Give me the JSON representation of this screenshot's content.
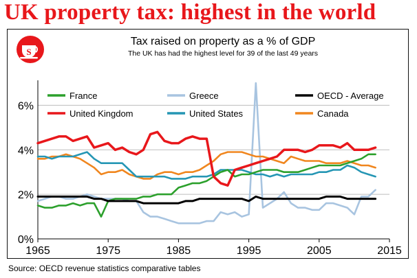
{
  "headline": "UK property tax: highest in the world",
  "source": "Source: OECD revenue statistics comparative tables",
  "chart_data": {
    "type": "line",
    "title": "Tax raised on property as a % of GDP",
    "subtitle": "The UK has had the highest level for 39 of the last 49 years",
    "x_ticks": [
      "1965",
      "1975",
      "1985",
      "1995",
      "2005",
      "2015"
    ],
    "y_ticks": [
      "0%",
      "2%",
      "4%",
      "6%"
    ],
    "xlim": [
      1965,
      2015
    ],
    "ylim": [
      0,
      7
    ],
    "grid": "horizontal",
    "legend_position": "top",
    "series": [
      {
        "name": "France",
        "color": "#2ca02c",
        "x": [
          1965,
          1966,
          1967,
          1968,
          1969,
          1970,
          1971,
          1972,
          1973,
          1974,
          1975,
          1976,
          1977,
          1978,
          1979,
          1980,
          1981,
          1982,
          1983,
          1984,
          1985,
          1986,
          1987,
          1988,
          1989,
          1990,
          1991,
          1992,
          1993,
          1994,
          1995,
          1996,
          1997,
          1998,
          1999,
          2000,
          2001,
          2002,
          2003,
          2004,
          2005,
          2006,
          2007,
          2008,
          2009,
          2010,
          2011,
          2012,
          2013
        ],
        "values": [
          1.5,
          1.4,
          1.4,
          1.5,
          1.5,
          1.6,
          1.5,
          1.6,
          1.6,
          1.0,
          1.7,
          1.8,
          1.8,
          1.8,
          1.8,
          1.9,
          1.9,
          2.0,
          2.0,
          2.0,
          2.3,
          2.4,
          2.5,
          2.5,
          2.6,
          2.8,
          3.0,
          3.1,
          2.8,
          2.9,
          2.9,
          3.0,
          3.1,
          3.1,
          3.1,
          3.0,
          3.0,
          3.0,
          3.1,
          3.2,
          3.3,
          3.3,
          3.3,
          3.3,
          3.4,
          3.5,
          3.6,
          3.8,
          3.8
        ]
      },
      {
        "name": "Greece",
        "color": "#a8c4e0",
        "x": [
          1965,
          1966,
          1967,
          1968,
          1969,
          1970,
          1971,
          1972,
          1973,
          1974,
          1975,
          1976,
          1977,
          1978,
          1979,
          1980,
          1981,
          1982,
          1983,
          1984,
          1985,
          1986,
          1987,
          1988,
          1989,
          1990,
          1991,
          1992,
          1993,
          1994,
          1995,
          1996,
          1997,
          1998,
          1999,
          2000,
          2001,
          2002,
          2003,
          2004,
          2005,
          2006,
          2007,
          2008,
          2009,
          2010,
          2011,
          2012,
          2013
        ],
        "values": [
          1.7,
          1.8,
          1.9,
          1.9,
          1.8,
          1.8,
          1.9,
          2.0,
          1.9,
          1.8,
          1.8,
          1.8,
          1.8,
          1.7,
          1.7,
          1.2,
          1.0,
          1.0,
          0.9,
          0.8,
          0.7,
          0.7,
          0.7,
          0.7,
          0.8,
          0.8,
          1.2,
          1.1,
          1.2,
          1.0,
          1.1,
          7.0,
          1.4,
          1.6,
          1.8,
          2.1,
          1.6,
          1.4,
          1.4,
          1.3,
          1.3,
          1.6,
          1.6,
          1.5,
          1.4,
          1.1,
          1.9,
          1.9,
          2.2
        ]
      },
      {
        "name": "OECD - Average",
        "color": "#000000",
        "x": [
          1965,
          1966,
          1967,
          1968,
          1969,
          1970,
          1971,
          1972,
          1973,
          1974,
          1975,
          1976,
          1977,
          1978,
          1979,
          1980,
          1981,
          1982,
          1983,
          1984,
          1985,
          1986,
          1987,
          1988,
          1989,
          1990,
          1991,
          1992,
          1993,
          1994,
          1995,
          1996,
          1997,
          1998,
          1999,
          2000,
          2001,
          2002,
          2003,
          2004,
          2005,
          2006,
          2007,
          2008,
          2009,
          2010,
          2011,
          2012,
          2013
        ],
        "values": [
          1.9,
          1.9,
          1.9,
          1.9,
          1.9,
          1.9,
          1.9,
          1.9,
          1.8,
          1.8,
          1.7,
          1.7,
          1.7,
          1.7,
          1.7,
          1.6,
          1.6,
          1.6,
          1.6,
          1.6,
          1.6,
          1.7,
          1.7,
          1.8,
          1.8,
          1.8,
          1.8,
          1.8,
          1.8,
          1.8,
          1.7,
          1.9,
          1.8,
          1.8,
          1.8,
          1.8,
          1.8,
          1.8,
          1.8,
          1.8,
          1.8,
          1.9,
          1.9,
          1.9,
          1.8,
          1.8,
          1.8,
          1.8,
          1.8
        ]
      },
      {
        "name": "United Kingdom",
        "color": "#e8171b",
        "x": [
          1965,
          1966,
          1967,
          1968,
          1969,
          1970,
          1971,
          1972,
          1973,
          1974,
          1975,
          1976,
          1977,
          1978,
          1979,
          1980,
          1981,
          1982,
          1983,
          1984,
          1985,
          1986,
          1987,
          1988,
          1989,
          1990,
          1991,
          1992,
          1993,
          1994,
          1995,
          1996,
          1997,
          1998,
          1999,
          2000,
          2001,
          2002,
          2003,
          2004,
          2005,
          2006,
          2007,
          2008,
          2009,
          2010,
          2011,
          2012,
          2013
        ],
        "values": [
          4.3,
          4.4,
          4.5,
          4.6,
          4.6,
          4.4,
          4.5,
          4.6,
          4.1,
          4.2,
          4.3,
          4.0,
          4.1,
          3.9,
          3.8,
          4.0,
          4.7,
          4.8,
          4.4,
          4.3,
          4.3,
          4.5,
          4.6,
          4.5,
          4.5,
          2.8,
          2.5,
          2.4,
          3.1,
          3.2,
          3.3,
          3.4,
          3.5,
          3.6,
          3.7,
          4.0,
          4.0,
          4.0,
          3.9,
          4.0,
          4.2,
          4.2,
          4.2,
          4.1,
          4.3,
          4.0,
          4.0,
          4.0,
          4.1
        ]
      },
      {
        "name": "United States",
        "color": "#2596b4",
        "x": [
          1965,
          1966,
          1967,
          1968,
          1969,
          1970,
          1971,
          1972,
          1973,
          1974,
          1975,
          1976,
          1977,
          1978,
          1979,
          1980,
          1981,
          1982,
          1983,
          1984,
          1985,
          1986,
          1987,
          1988,
          1989,
          1990,
          1991,
          1992,
          1993,
          1994,
          1995,
          1996,
          1997,
          1998,
          1999,
          2000,
          2001,
          2002,
          2003,
          2004,
          2005,
          2006,
          2007,
          2008,
          2009,
          2010,
          2011,
          2012,
          2013
        ],
        "values": [
          3.7,
          3.7,
          3.6,
          3.7,
          3.7,
          3.7,
          3.8,
          3.9,
          3.6,
          3.4,
          3.4,
          3.4,
          3.4,
          3.1,
          2.8,
          2.8,
          2.8,
          2.8,
          2.8,
          2.7,
          2.7,
          2.7,
          2.8,
          2.8,
          2.8,
          2.9,
          3.1,
          3.1,
          3.1,
          3.1,
          3.0,
          2.9,
          2.9,
          2.8,
          2.9,
          2.8,
          2.9,
          2.9,
          2.9,
          2.9,
          3.0,
          3.0,
          3.1,
          3.1,
          3.3,
          3.2,
          3.0,
          2.9,
          2.8
        ]
      },
      {
        "name": "Canada",
        "color": "#f0861e",
        "x": [
          1965,
          1966,
          1967,
          1968,
          1969,
          1970,
          1971,
          1972,
          1973,
          1974,
          1975,
          1976,
          1977,
          1978,
          1979,
          1980,
          1981,
          1982,
          1983,
          1984,
          1985,
          1986,
          1987,
          1988,
          1989,
          1990,
          1991,
          1992,
          1993,
          1994,
          1995,
          1996,
          1997,
          1998,
          1999,
          2000,
          2001,
          2002,
          2003,
          2004,
          2005,
          2006,
          2007,
          2008,
          2009,
          2010,
          2011,
          2012,
          2013
        ],
        "values": [
          3.6,
          3.6,
          3.7,
          3.7,
          3.8,
          3.7,
          3.6,
          3.4,
          3.2,
          2.9,
          3.0,
          3.0,
          3.1,
          2.9,
          2.8,
          2.7,
          2.7,
          2.9,
          3.0,
          3.0,
          2.9,
          3.0,
          3.0,
          3.1,
          3.3,
          3.5,
          3.8,
          3.9,
          3.9,
          3.9,
          3.8,
          3.7,
          3.7,
          3.6,
          3.5,
          3.4,
          3.7,
          3.6,
          3.5,
          3.5,
          3.5,
          3.4,
          3.4,
          3.4,
          3.5,
          3.4,
          3.3,
          3.3,
          3.2
        ]
      }
    ]
  }
}
